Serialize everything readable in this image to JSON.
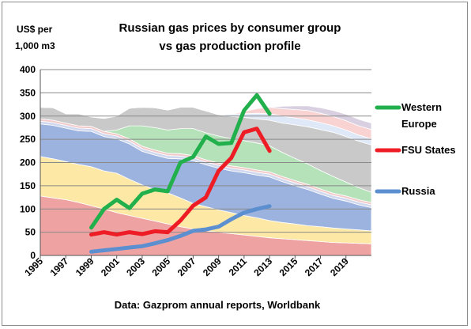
{
  "chart_data": {
    "type": "line",
    "title": "Russian gas prices by consumer group",
    "subtitle": "vs gas production profile",
    "ylabel": [
      "US$ per",
      "1,000 m3"
    ],
    "source_note": "Data: Gazprom annual reports,  Worldbank",
    "ylim": [
      0,
      400
    ],
    "yticks": [
      0,
      50,
      100,
      150,
      200,
      250,
      300,
      350,
      400
    ],
    "xlim": [
      1995,
      2021
    ],
    "xticks": [
      1995,
      1997,
      1999,
      2001,
      2003,
      2005,
      2007,
      2009,
      2011,
      2013,
      2015,
      2017,
      2019
    ],
    "grid": true,
    "legend_position": "right",
    "series": [
      {
        "name": "Western Europe",
        "color": "#22b04c",
        "x": [
          1999,
          2000,
          2001,
          2002,
          2003,
          2004,
          2005,
          2006,
          2007,
          2008,
          2009,
          2010,
          2011,
          2012,
          2013
        ],
        "values": [
          60,
          100,
          120,
          102,
          133,
          142,
          138,
          200,
          212,
          256,
          240,
          242,
          312,
          345,
          305
        ]
      },
      {
        "name": "FSU States",
        "color": "#ee1c24",
        "x": [
          1999,
          2000,
          2001,
          2002,
          2003,
          2004,
          2005,
          2006,
          2007,
          2008,
          2009,
          2010,
          2011,
          2012,
          2013
        ],
        "values": [
          45,
          50,
          45,
          50,
          46,
          52,
          50,
          75,
          107,
          125,
          182,
          210,
          265,
          273,
          225
        ]
      },
      {
        "name": "Russia",
        "color": "#5b8fd0",
        "x": [
          1999,
          2000,
          2001,
          2002,
          2003,
          2004,
          2005,
          2006,
          2007,
          2008,
          2009,
          2010,
          2011,
          2012,
          2013
        ],
        "values": [
          8,
          11,
          14,
          17,
          20,
          26,
          33,
          42,
          53,
          56,
          62,
          78,
          92,
          100,
          106
        ]
      }
    ],
    "background_areas": {
      "x": [
        1995,
        1996,
        1997,
        1998,
        1999,
        2000,
        2001,
        2002,
        2003,
        2004,
        2005,
        2006,
        2007,
        2008,
        2009,
        2010,
        2011,
        2012,
        2013,
        2014,
        2015,
        2016,
        2017,
        2018,
        2019,
        2020,
        2021
      ],
      "layers": [
        {
          "color": "#eea2a2",
          "values": [
            128,
            124,
            120,
            114,
            107,
            100,
            92,
            86,
            80,
            74,
            68,
            62,
            57,
            53,
            50,
            47,
            44,
            41,
            38,
            36,
            34,
            32,
            30,
            28,
            27,
            26,
            25
          ]
        },
        {
          "color": "#fde9a5",
          "values": [
            85,
            84,
            82,
            82,
            84,
            82,
            85,
            78,
            72,
            68,
            67,
            62,
            55,
            52,
            48,
            45,
            42,
            40,
            37,
            35,
            34,
            32,
            32,
            31,
            30,
            29,
            28
          ]
        },
        {
          "color": "#9db3df",
          "values": [
            70,
            72,
            72,
            72,
            76,
            74,
            74,
            76,
            72,
            74,
            74,
            84,
            92,
            90,
            90,
            90,
            92,
            92,
            94,
            88,
            82,
            78,
            70,
            64,
            60,
            54,
            50
          ]
        },
        {
          "color": "#cfd8ee",
          "values": [
            6,
            6,
            6,
            6,
            6,
            6,
            6,
            6,
            6,
            6,
            6,
            6,
            6,
            6,
            6,
            6,
            6,
            6,
            6,
            6,
            6,
            6,
            6,
            6,
            6,
            6,
            6
          ]
        },
        {
          "color": "#f2caca",
          "values": [
            5,
            5,
            5,
            5,
            5,
            5,
            5,
            5,
            5,
            5,
            5,
            5,
            5,
            5,
            5,
            5,
            5,
            5,
            5,
            5,
            5,
            5,
            5,
            5,
            5,
            5,
            5
          ]
        },
        {
          "color": "#b5e2b9",
          "values": [
            0,
            0,
            0,
            0,
            0,
            0,
            8,
            28,
            44,
            48,
            50,
            54,
            58,
            58,
            58,
            58,
            58,
            58,
            56,
            52,
            48,
            44,
            40,
            36,
            30,
            26,
            22
          ]
        },
        {
          "color": "#c9c9c9",
          "values": [
            25,
            27,
            20,
            26,
            20,
            28,
            30,
            38,
            40,
            43,
            43,
            46,
            46,
            47,
            46,
            48,
            50,
            52,
            55,
            63,
            72,
            80,
            88,
            95,
            98,
            100,
            102
          ]
        },
        {
          "color": "#dfe8f7",
          "values": [
            0,
            0,
            0,
            0,
            0,
            0,
            0,
            0,
            0,
            0,
            0,
            0,
            0,
            0,
            0,
            5,
            8,
            12,
            14,
            15,
            15,
            15,
            15,
            14,
            14,
            13,
            13
          ]
        },
        {
          "color": "#f9d2d2",
          "values": [
            0,
            0,
            0,
            0,
            0,
            0,
            0,
            0,
            0,
            0,
            0,
            0,
            0,
            0,
            0,
            0,
            5,
            10,
            14,
            16,
            18,
            20,
            20,
            20,
            20,
            20,
            20
          ]
        },
        {
          "color": "#d8cfe0",
          "values": [
            0,
            0,
            0,
            0,
            0,
            0,
            0,
            0,
            0,
            0,
            0,
            0,
            0,
            0,
            0,
            0,
            0,
            0,
            0,
            5,
            8,
            10,
            12,
            13,
            14,
            14,
            14
          ]
        }
      ]
    }
  }
}
